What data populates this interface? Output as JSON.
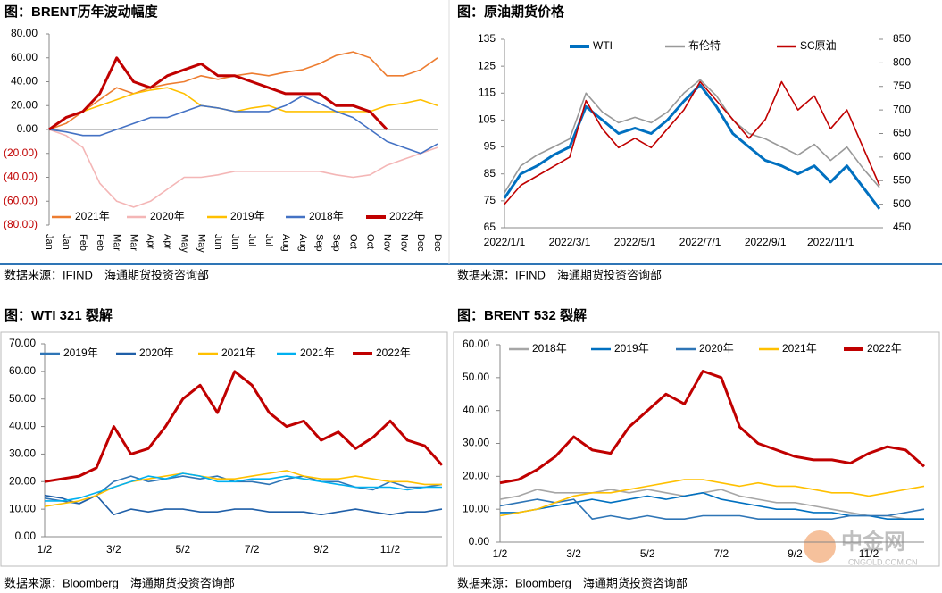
{
  "chart_data": [
    {
      "type": "line",
      "title": "图：BRENT历年波动幅度",
      "source": "数据来源：IFIND　海通期货投资咨询部",
      "categories": [
        "Jan",
        "Jan",
        "Feb",
        "Feb",
        "Mar",
        "Mar",
        "Apr",
        "Apr",
        "May",
        "May",
        "Jun",
        "Jun",
        "Jul",
        "Jul",
        "Aug",
        "Aug",
        "Sep",
        "Sep",
        "Oct",
        "Oct",
        "Nov",
        "Nov",
        "Dec",
        "Dec"
      ],
      "ylim": [
        -80,
        80
      ],
      "yticks": [
        {
          "value": 80,
          "label": "80.00"
        },
        {
          "value": 60,
          "label": "60.00"
        },
        {
          "value": 40,
          "label": "40.00"
        },
        {
          "value": 20,
          "label": "20.00"
        },
        {
          "value": 0,
          "label": "0.00"
        },
        {
          "value": -20,
          "label": "(20.00)"
        },
        {
          "value": -40,
          "label": "(40.00)"
        },
        {
          "value": -60,
          "label": "(60.00)"
        },
        {
          "value": -80,
          "label": "(80.00)"
        }
      ],
      "negative_tick_color": "#c00000",
      "series": [
        {
          "name": "2021年",
          "color": "#ed7d31",
          "values": [
            0,
            5,
            15,
            25,
            35,
            30,
            35,
            38,
            40,
            45,
            42,
            45,
            47,
            45,
            48,
            50,
            55,
            62,
            65,
            60,
            45,
            45,
            50,
            60
          ]
        },
        {
          "name": "2020年",
          "color": "#f4b6b6",
          "values": [
            0,
            -5,
            -15,
            -45,
            -60,
            -65,
            -60,
            -50,
            -40,
            -40,
            -38,
            -35,
            -35,
            -35,
            -35,
            -35,
            -35,
            -38,
            -40,
            -38,
            -30,
            -25,
            -20,
            -15
          ]
        },
        {
          "name": "2019年",
          "color": "#ffc000",
          "values": [
            0,
            10,
            15,
            20,
            25,
            30,
            33,
            35,
            30,
            20,
            18,
            15,
            18,
            20,
            15,
            15,
            15,
            15,
            15,
            15,
            20,
            22,
            25,
            20
          ]
        },
        {
          "name": "2018年",
          "color": "#4472c4",
          "values": [
            0,
            -2,
            -5,
            -5,
            0,
            5,
            10,
            10,
            15,
            20,
            18,
            15,
            15,
            15,
            20,
            28,
            22,
            15,
            10,
            0,
            -10,
            -15,
            -20,
            -12
          ]
        },
        {
          "name": "2022年",
          "color": "#c00000",
          "values": [
            0,
            10,
            15,
            30,
            60,
            40,
            35,
            45,
            50,
            55,
            45,
            45,
            40,
            35,
            30,
            30,
            30,
            20,
            20,
            15,
            0,
            null,
            null,
            null
          ]
        }
      ]
    },
    {
      "type": "line",
      "title": "图：原油期货价格",
      "source": "数据来源：IFIND　海通期货投资咨询部",
      "categories": [
        "2022/1/1",
        null,
        null,
        null,
        "2022/3/1",
        null,
        null,
        null,
        "2022/5/1",
        null,
        null,
        null,
        "2022/7/1",
        null,
        null,
        null,
        "2022/9/1",
        null,
        null,
        null,
        "2022/11/1",
        null,
        null,
        null
      ],
      "ylim": [
        65,
        135
      ],
      "yticks": [
        65,
        75,
        85,
        95,
        105,
        115,
        125,
        135
      ],
      "y2lim": [
        450,
        850
      ],
      "y2ticks": [
        450,
        500,
        550,
        600,
        650,
        700,
        750,
        800,
        850
      ],
      "series": [
        {
          "name": "WTI",
          "color": "#0070c0",
          "values": [
            76,
            85,
            88,
            92,
            95,
            110,
            105,
            100,
            102,
            100,
            105,
            112,
            118,
            110,
            100,
            95,
            90,
            88,
            85,
            88,
            82,
            88,
            80,
            72
          ]
        },
        {
          "name": "布伦特",
          "color": "#999999",
          "values": [
            78,
            88,
            92,
            95,
            98,
            115,
            108,
            104,
            106,
            104,
            108,
            115,
            120,
            114,
            105,
            100,
            98,
            95,
            92,
            96,
            90,
            95,
            87,
            80
          ]
        },
        {
          "name": "SC原油",
          "color": "#c00000",
          "axis": "y2",
          "values": [
            500,
            540,
            560,
            580,
            600,
            720,
            660,
            620,
            640,
            620,
            660,
            700,
            760,
            720,
            680,
            640,
            680,
            760,
            700,
            730,
            660,
            700,
            620,
            540
          ]
        }
      ]
    },
    {
      "type": "line",
      "title": "图：WTI 321 裂解",
      "source": "数据来源：Bloomberg　海通期货投资咨询部",
      "categories": [
        "1/2",
        null,
        null,
        null,
        "3/2",
        null,
        null,
        null,
        "5/2",
        null,
        null,
        null,
        "7/2",
        null,
        null,
        null,
        "9/2",
        null,
        null,
        null,
        "11/2",
        null,
        null,
        null
      ],
      "ylim": [
        0,
        70
      ],
      "yticks": [
        {
          "value": 0,
          "label": "0.00"
        },
        {
          "value": 10,
          "label": "10.00"
        },
        {
          "value": 20,
          "label": "20.00"
        },
        {
          "value": 30,
          "label": "30.00"
        },
        {
          "value": 40,
          "label": "40.00"
        },
        {
          "value": 50,
          "label": "50.00"
        },
        {
          "value": 60,
          "label": "60.00"
        },
        {
          "value": 70,
          "label": "70.00"
        }
      ],
      "series": [
        {
          "name": "2019年",
          "color": "#2e75b6",
          "values": [
            14,
            13,
            12,
            15,
            20,
            22,
            20,
            21,
            22,
            21,
            22,
            20,
            20,
            19,
            21,
            22,
            20,
            20,
            18,
            17,
            20,
            18,
            18,
            19
          ]
        },
        {
          "name": "2020年",
          "color": "#1f5fa8",
          "values": [
            15,
            14,
            12,
            15,
            8,
            10,
            9,
            10,
            10,
            9,
            9,
            10,
            10,
            9,
            9,
            9,
            8,
            9,
            10,
            9,
            8,
            9,
            9,
            10
          ]
        },
        {
          "name": "2021年",
          "color": "#ffc000",
          "values": [
            11,
            12,
            13,
            15,
            18,
            20,
            21,
            22,
            23,
            22,
            21,
            21,
            22,
            23,
            24,
            22,
            21,
            21,
            22,
            21,
            20,
            20,
            19,
            19
          ]
        },
        {
          "name": "2021年",
          "color": "#00b0f0",
          "values": [
            13,
            13,
            14,
            16,
            18,
            20,
            22,
            21,
            23,
            22,
            20,
            20,
            21,
            21,
            22,
            21,
            20,
            19,
            18,
            18,
            18,
            17,
            18,
            18
          ]
        },
        {
          "name": "2022年",
          "color": "#c00000",
          "values": [
            20,
            21,
            22,
            25,
            40,
            30,
            32,
            40,
            50,
            55,
            45,
            60,
            55,
            45,
            40,
            42,
            35,
            38,
            32,
            36,
            42,
            35,
            33,
            26
          ]
        }
      ]
    },
    {
      "type": "line",
      "title": "图：BRENT 532 裂解",
      "source": "数据来源：Bloomberg　海通期货投资咨询部",
      "categories": [
        "1/2",
        null,
        null,
        null,
        "3/2",
        null,
        null,
        null,
        "5/2",
        null,
        null,
        null,
        "7/2",
        null,
        null,
        null,
        "9/2",
        null,
        null,
        null,
        "11/2",
        null,
        null,
        null
      ],
      "ylim": [
        0,
        60
      ],
      "yticks": [
        {
          "value": 0,
          "label": "0.00"
        },
        {
          "value": 10,
          "label": "10.00"
        },
        {
          "value": 20,
          "label": "20.00"
        },
        {
          "value": 30,
          "label": "30.00"
        },
        {
          "value": 40,
          "label": "40.00"
        },
        {
          "value": 50,
          "label": "50.00"
        },
        {
          "value": 60,
          "label": "60.00"
        }
      ],
      "series": [
        {
          "name": "2018年",
          "color": "#a6a6a6",
          "values": [
            13,
            14,
            16,
            15,
            15,
            15,
            16,
            15,
            16,
            15,
            14,
            15,
            16,
            14,
            13,
            12,
            12,
            11,
            10,
            9,
            8,
            8,
            7,
            7
          ]
        },
        {
          "name": "2019年",
          "color": "#0070c0",
          "values": [
            9,
            9,
            10,
            11,
            12,
            13,
            12,
            13,
            14,
            13,
            14,
            15,
            13,
            12,
            11,
            10,
            10,
            9,
            9,
            8,
            8,
            7,
            7,
            7
          ]
        },
        {
          "name": "2020年",
          "color": "#2e75b6",
          "values": [
            11,
            12,
            13,
            12,
            13,
            7,
            8,
            7,
            8,
            7,
            7,
            8,
            8,
            8,
            7,
            7,
            7,
            7,
            7,
            8,
            8,
            8,
            9,
            10
          ]
        },
        {
          "name": "2021年",
          "color": "#ffc000",
          "values": [
            8,
            9,
            10,
            12,
            14,
            15,
            15,
            16,
            17,
            18,
            19,
            19,
            18,
            17,
            18,
            17,
            17,
            16,
            15,
            15,
            14,
            15,
            16,
            17
          ]
        },
        {
          "name": "2022年",
          "color": "#c00000",
          "values": [
            18,
            19,
            22,
            26,
            32,
            28,
            27,
            35,
            40,
            45,
            42,
            52,
            50,
            35,
            30,
            28,
            26,
            25,
            25,
            24,
            27,
            29,
            28,
            23
          ]
        }
      ]
    }
  ],
  "watermark": {
    "name": "中金网",
    "site": "CNGOLD.COM.CN"
  }
}
